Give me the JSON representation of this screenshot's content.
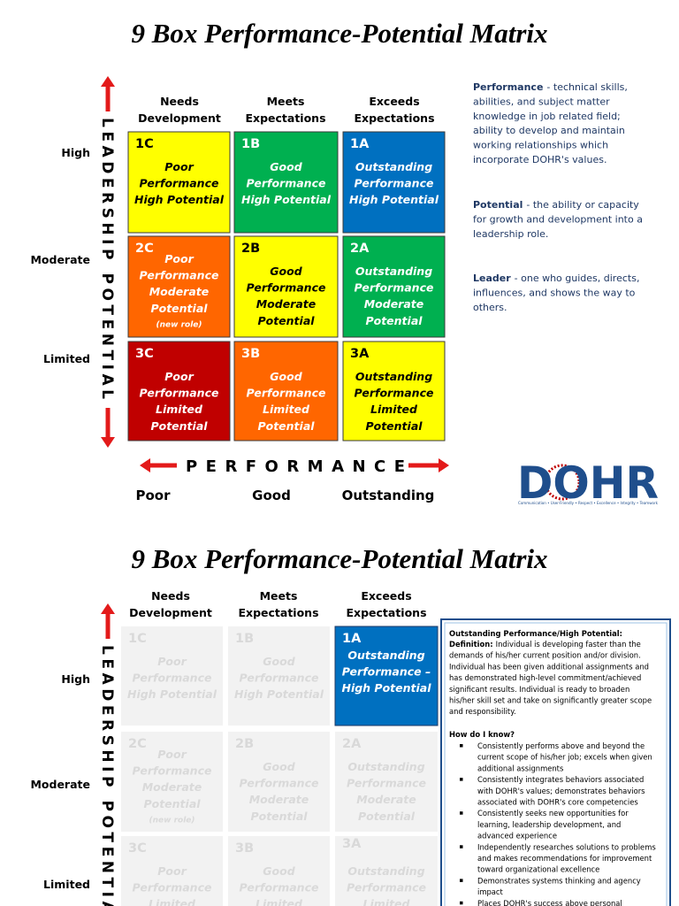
{
  "matrix_top": {
    "title": "9 Box Performance-Potential Matrix",
    "columns": [
      [
        "Needs",
        "Development"
      ],
      [
        "Meets",
        "Expectations"
      ],
      [
        "Exceeds",
        "Expectations"
      ]
    ],
    "rows": [
      "High",
      "Moderate",
      "Limited"
    ],
    "y_axis": "LEADERSHIP POTENTIAL",
    "x_axis": "PERFORMANCE",
    "x_scale": [
      "Poor",
      "Good",
      "Outstanding"
    ],
    "boxes": [
      {
        "code": "1C",
        "lines": [
          "Poor",
          "Performance",
          "High Potential"
        ],
        "fill": "#ffff00",
        "ink": "#000000"
      },
      {
        "code": "1B",
        "lines": [
          "Good",
          "Performance",
          "High Potential"
        ],
        "fill": "#00b050",
        "ink": "#ffffff"
      },
      {
        "code": "1A",
        "lines": [
          "Outstanding",
          "Performance",
          "High Potential"
        ],
        "fill": "#0070c0",
        "ink": "#ffffff"
      },
      {
        "code": "2C",
        "lines": [
          "Poor",
          "Performance",
          "Moderate",
          "Potential"
        ],
        "note": "(new role)",
        "fill": "#ff6600",
        "ink": "#ffffff"
      },
      {
        "code": "2B",
        "lines": [
          "Good",
          "Performance",
          "Moderate",
          "Potential"
        ],
        "fill": "#ffff00",
        "ink": "#000000"
      },
      {
        "code": "2A",
        "lines": [
          "Outstanding",
          "Performance",
          "Moderate",
          "Potential"
        ],
        "fill": "#00b050",
        "ink": "#ffffff"
      },
      {
        "code": "3C",
        "lines": [
          "Poor",
          "Performance",
          "Limited",
          "Potential"
        ],
        "fill": "#c00000",
        "ink": "#ffffff"
      },
      {
        "code": "3B",
        "lines": [
          "Good",
          "Performance",
          "Limited",
          "Potential"
        ],
        "fill": "#ff6600",
        "ink": "#ffffff"
      },
      {
        "code": "3A",
        "lines": [
          "Outstanding",
          "Performance",
          "Limited",
          "Potential"
        ],
        "fill": "#ffff00",
        "ink": "#000000"
      }
    ],
    "definitions": [
      {
        "term": "Performance",
        "lines": [
          "- technical skills,",
          "abilities, and subject matter",
          "knowledge in job related field;",
          "ability to develop and maintain",
          "working relationships which",
          "incorporate DOHR's values."
        ]
      },
      {
        "term": "Potential",
        "lines": [
          "- the ability or capacity",
          "for growth and development into a",
          "leadership role."
        ]
      },
      {
        "term": "Leader",
        "lines": [
          "- one who guides, directs,",
          "influences, and shows the way to",
          "others."
        ]
      }
    ],
    "logo": {
      "text": "DOHR",
      "tagline": "Communication • User-Friendly • Respect • Excellence • Integrity • Teamwork"
    }
  },
  "matrix_bottom": {
    "title": "9 Box Performance-Potential Matrix",
    "columns": [
      [
        "Needs",
        "Development"
      ],
      [
        "Meets",
        "Expectations"
      ],
      [
        "Exceeds",
        "Expectations"
      ]
    ],
    "rows": [
      "High",
      "Moderate",
      "Limited"
    ],
    "y_axis": "LEADERSHIP POTENTIAL",
    "boxes": [
      {
        "code": "1C",
        "lines": [
          "Poor",
          "Performance",
          "High Potential"
        ]
      },
      {
        "code": "1B",
        "lines": [
          "Good",
          "Performance",
          "High Potential"
        ]
      },
      {
        "code": "1A",
        "lines": [
          "Outstanding",
          "Performance –",
          "High Potential"
        ],
        "active": true
      },
      {
        "code": "2C",
        "lines": [
          "Poor",
          "Performance",
          "Moderate",
          "Potential"
        ],
        "note": "(new role)"
      },
      {
        "code": "2B",
        "lines": [
          "Good",
          "Performance",
          "Moderate",
          "Potential"
        ]
      },
      {
        "code": "2A",
        "lines": [
          "Outstanding",
          "Performance",
          "Moderate",
          "Potential"
        ]
      },
      {
        "code": "3C",
        "lines": [
          "Poor",
          "Performance",
          "Limited"
        ]
      },
      {
        "code": "3B",
        "lines": [
          "Good",
          "Performance",
          "Limited"
        ]
      },
      {
        "code": "3A",
        "lines": [
          "Outstanding",
          "Performance",
          "Limited"
        ]
      }
    ],
    "detail": {
      "heading": "Outstanding Performance/High Potential:",
      "definition_label": "Definition:",
      "definition_lines": [
        "Individual is developing faster than the",
        "demands of his/her current position and/or division.",
        "Individual has been given additional assignments and",
        "has demonstrated high-level commitment/achieved",
        "significant results. Individual is ready to broaden",
        "his/her skill set and take on significantly greater scope",
        "and responsibility."
      ],
      "question": "How do I know?",
      "bullets": [
        [
          "Consistently performs above and beyond the",
          "current scope of his/her job; excels when given",
          "additional assignments"
        ],
        [
          "Consistently integrates behaviors associated",
          "with DOHR's values; demonstrates behaviors",
          "associated with DOHR's core competencies"
        ],
        [
          "Consistently seeks new opportunities for",
          "learning,  leadership development, and",
          "advanced experience"
        ],
        [
          "Independently researches solutions to problems",
          "and makes recommendations for improvement",
          "toward organizational excellence"
        ],
        [
          "Demonstrates systems thinking and agency",
          "impact"
        ],
        [
          "Places DOHR's success above personal"
        ]
      ]
    }
  }
}
